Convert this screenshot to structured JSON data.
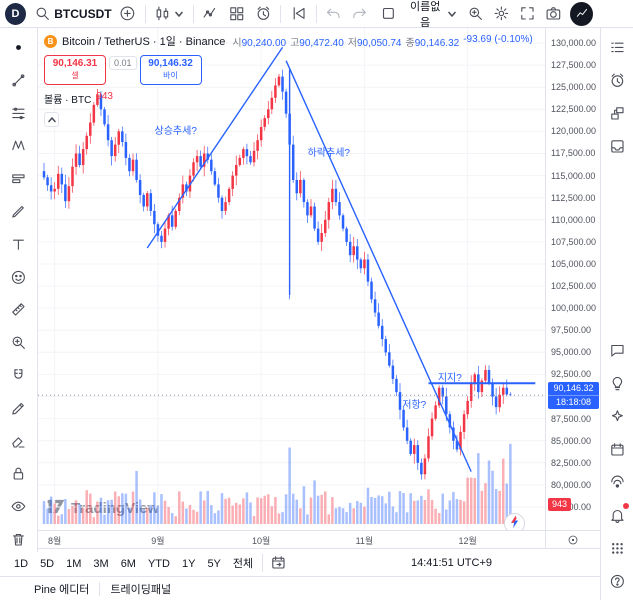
{
  "topbar": {
    "avatar_initial": "D",
    "symbol": "BTCUSDT",
    "layout_name": "이름없음"
  },
  "legend": {
    "title": "Bitcoin / TetherUS · 1일 · Binance",
    "open_label": "시",
    "open": "90,240.00",
    "high_label": "고",
    "high": "90,472.40",
    "low_label": "저",
    "low": "90,050.74",
    "close_label": "종",
    "close": "90,146.32",
    "change": "-93.69 (-0.10%)",
    "volume_label": "볼륨 · BTC",
    "volume_value": "943"
  },
  "trade_widget": {
    "sell_price": "90,146.31",
    "sell_label": "셀",
    "qty": "0.01",
    "buy_price": "90,146.32",
    "buy_label": "바이"
  },
  "price_scale": {
    "current_price": "90,146.32",
    "countdown": "18:18:08",
    "volume_badge": "943"
  },
  "watermark": "TradingView",
  "bottombar": {
    "ranges": [
      "1D",
      "5D",
      "1M",
      "3M",
      "6M",
      "YTD",
      "1Y",
      "5Y",
      "전체"
    ],
    "clock": "14:41:51 UTC+9"
  },
  "panel_tabs": {
    "pine": "Pine 에디터",
    "trading": "트레이딩패널"
  },
  "icons": {
    "topbar": [
      "user-avatar",
      "symbol-search",
      "add-symbol",
      "chart-type-candles",
      "indicators",
      "layout-templates",
      "alert",
      "bar-replay",
      "undo",
      "redo",
      "save-layout",
      "quick-search",
      "settings",
      "fullscreen",
      "snapshot",
      "publish"
    ],
    "left_toolbar": [
      "cursor",
      "trend-line",
      "fib-retracement",
      "pattern",
      "projection",
      "brush",
      "text",
      "emoji",
      "measure",
      "zoom-in",
      "magnet",
      "edit",
      "eraser",
      "lock",
      "show-hide",
      "remove-drawings"
    ],
    "right_sidebar": [
      "watchlist",
      "alerts",
      "object-tree",
      "data-window",
      "chat",
      "ideas",
      "minds",
      "calendar",
      "streams",
      "notifications",
      "apps",
      "help"
    ],
    "bottom": [
      "go-to-date",
      "scale-reset",
      "lightning-boost"
    ]
  },
  "chart_data": {
    "type": "candlestick",
    "title": "Bitcoin / TetherUS",
    "exchange": "Binance",
    "interval": "1일",
    "up_color": "#f23645",
    "down_color": "#2962ff",
    "line_color": "#2962ff",
    "price_axis": {
      "min": 77500,
      "max": 130000,
      "step": 2500
    },
    "time_axis_months": [
      {
        "label": "8월",
        "index": 3
      },
      {
        "label": "9월",
        "index": 32
      },
      {
        "label": "10월",
        "index": 61
      },
      {
        "label": "11월",
        "index": 90
      },
      {
        "label": "12월",
        "index": 119
      }
    ],
    "first_open": 115500,
    "closes": [
      114800,
      113900,
      113200,
      113500,
      115200,
      114000,
      112100,
      113800,
      116000,
      117500,
      116200,
      118000,
      119500,
      121000,
      123000,
      124200,
      122500,
      120800,
      119000,
      117200,
      118500,
      120000,
      118800,
      117000,
      115500,
      116800,
      114500,
      112800,
      111500,
      113000,
      111000,
      109500,
      108200,
      107500,
      109000,
      110500,
      109200,
      111000,
      112500,
      114000,
      113200,
      115000,
      116500,
      117200,
      116000,
      117500,
      116800,
      115500,
      114000,
      112500,
      111000,
      112000,
      113500,
      115000,
      116200,
      117000,
      118000,
      117200,
      116500,
      117800,
      119000,
      120500,
      121500,
      122500,
      123800,
      125200,
      126200,
      124500,
      122000,
      118500,
      114500,
      113000,
      114500,
      112000,
      110500,
      111500,
      109000,
      107500,
      108500,
      110000,
      112000,
      113500,
      112000,
      110500,
      109000,
      107500,
      106000,
      107000,
      105500,
      104500,
      105500,
      103000,
      101000,
      99500,
      98000,
      96500,
      95000,
      93500,
      92000,
      90500,
      88500,
      86500,
      85000,
      83500,
      84500,
      82500,
      81200,
      83000,
      85500,
      87500,
      89000,
      91000,
      90000,
      88000,
      86500,
      85000,
      84000,
      86000,
      88000,
      89500,
      91500,
      92500,
      90500,
      91800,
      93000,
      91500,
      90000,
      88800,
      90200,
      91000,
      90240,
      90146.32
    ],
    "special_wicks": [
      {
        "index": 15,
        "high": 124800
      },
      {
        "index": 66,
        "high": 126500
      },
      {
        "index": 69,
        "low": 101000
      },
      {
        "index": 106,
        "low": 80600
      },
      {
        "index": 131,
        "high": 90472.4,
        "low": 90050.74
      }
    ],
    "last_candle": {
      "open": 90240.0,
      "high": 90472.4,
      "low": 90050.74,
      "close": 90146.32,
      "volume": 943
    },
    "current_price": 90146.32,
    "trend_lines": [
      {
        "name": "ascending-trendline",
        "i1": 29,
        "p1": 106800,
        "i2": 67,
        "p2": 129500
      },
      {
        "name": "vertical-line",
        "i1": 69,
        "p1": 127000,
        "i2": 69,
        "p2": 101500
      },
      {
        "name": "descending-trendline",
        "i1": 68,
        "p1": 128000,
        "i2": 120,
        "p2": 81500
      },
      {
        "name": "support-line",
        "i1": 108,
        "p1": 91500,
        "i2": 138,
        "p2": 91500,
        "width": 2
      }
    ],
    "annotations": [
      {
        "text": "상승추세?",
        "i": 37,
        "p": 120400
      },
      {
        "text": "하락추세?",
        "i": 80,
        "p": 117900
      },
      {
        "text": "지지?",
        "i": 114,
        "p": 92400
      },
      {
        "text": "저항?",
        "i": 104,
        "p": 89400
      }
    ]
  }
}
